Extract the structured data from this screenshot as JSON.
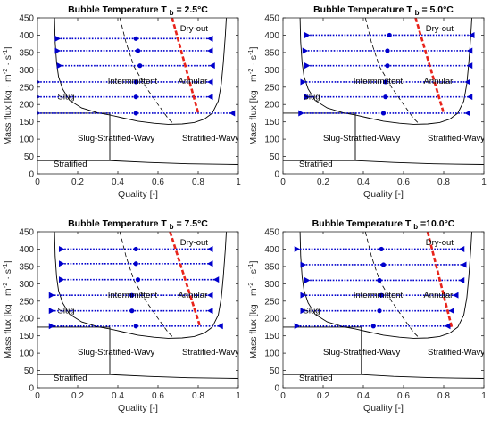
{
  "chart_data": [
    {
      "type": "scatter",
      "title": "Bubble Temperature T",
      "title_subscript": "b",
      "title_value": "= 2.5°C",
      "xlabel": "Quality [-]",
      "ylabel": "Mass flux [kg · m",
      "ylabel_exp1": "-2",
      "ylabel_mid": " · s",
      "ylabel_exp2": "-1",
      "ylabel_end": "]",
      "xlim": [
        0,
        1
      ],
      "ylim": [
        0,
        450
      ],
      "xticks": [
        0,
        0.2,
        0.4,
        0.6,
        0.8,
        1
      ],
      "xtick_labels": [
        "0",
        "0.2",
        "0.4",
        "0.6",
        "0.8",
        "1"
      ],
      "yticks": [
        0,
        50,
        100,
        150,
        200,
        250,
        300,
        350,
        400,
        450
      ],
      "ytick_labels": [
        "0",
        "50",
        "100",
        "150",
        "200",
        "250",
        "300",
        "350",
        "400",
        "450"
      ],
      "regions": [
        "Dry-out",
        "Intermmittent",
        "Annular",
        "Slug",
        "Slug-Stratified-Wavy",
        "Stratified-Wavy",
        "Stratified"
      ],
      "measurement_series": [
        {
          "G": 390,
          "x_in": 0.1,
          "x_mid": 0.49,
          "x_out": 0.86
        },
        {
          "G": 355,
          "x_in": 0.1,
          "x_mid": 0.5,
          "x_out": 0.86
        },
        {
          "G": 312,
          "x_in": 0.11,
          "x_mid": 0.51,
          "x_out": 0.87
        },
        {
          "G": 265,
          "x_in": 0.0,
          "x_mid": 0.49,
          "x_out": 0.86
        },
        {
          "G": 222,
          "x_in": 0.0,
          "x_mid": 0.49,
          "x_out": 0.86
        },
        {
          "G": 175,
          "x_in": 0.0,
          "x_mid": 0.49,
          "x_out": 0.97
        }
      ],
      "dryout_line": [
        [
          0.67,
          450
        ],
        [
          0.8,
          175
        ]
      ]
    },
    {
      "type": "scatter",
      "title": "Bubble Temperature T",
      "title_subscript": "b",
      "title_value": "= 5.0°C",
      "xlabel": "Quality [-]",
      "ylabel": "Mass flux [kg · m",
      "ylabel_exp1": "-2",
      "ylabel_mid": " · s",
      "ylabel_exp2": "-1",
      "ylabel_end": "]",
      "xlim": [
        0,
        1
      ],
      "ylim": [
        0,
        450
      ],
      "xticks": [
        0,
        0.2,
        0.4,
        0.6,
        0.8,
        1
      ],
      "xtick_labels": [
        "0",
        "0.2",
        "0.4",
        "0.6",
        "0.8",
        "1"
      ],
      "yticks": [
        0,
        50,
        100,
        150,
        200,
        250,
        300,
        350,
        400,
        450
      ],
      "ytick_labels": [
        "0",
        "50",
        "100",
        "150",
        "200",
        "250",
        "300",
        "350",
        "400",
        "450"
      ],
      "regions": [
        "Dry-out",
        "Intermmittent",
        "Annular",
        "Slug",
        "Slug-Stratified-Wavy",
        "Stratified-Wavy",
        "Stratified"
      ],
      "measurement_series": [
        {
          "G": 400,
          "x_in": 0.12,
          "x_mid": 0.53,
          "x_out": 0.94
        },
        {
          "G": 355,
          "x_in": 0.11,
          "x_mid": 0.52,
          "x_out": 0.93
        },
        {
          "G": 312,
          "x_in": 0.12,
          "x_mid": 0.52,
          "x_out": 0.93
        },
        {
          "G": 265,
          "x_in": 0.1,
          "x_mid": 0.51,
          "x_out": 0.92
        },
        {
          "G": 222,
          "x_in": 0.12,
          "x_mid": 0.51,
          "x_out": 0.93
        },
        {
          "G": 175,
          "x_in": 0.09,
          "x_mid": 0.5,
          "x_out": 0.92
        }
      ],
      "dryout_line": [
        [
          0.66,
          450
        ],
        [
          0.8,
          175
        ]
      ]
    },
    {
      "type": "scatter",
      "title": "Bubble Temperature T",
      "title_subscript": "b",
      "title_value": "= 7.5°C",
      "xlabel": "Quality [-]",
      "ylabel": "Mass flux [kg · m",
      "ylabel_exp1": "-2",
      "ylabel_mid": " · s",
      "ylabel_exp2": "-1",
      "ylabel_end": "]",
      "xlim": [
        0,
        1
      ],
      "ylim": [
        0,
        450
      ],
      "xticks": [
        0,
        0.2,
        0.4,
        0.6,
        0.8,
        1
      ],
      "xtick_labels": [
        "0",
        "0.2",
        "0.4",
        "0.6",
        "0.8",
        "1"
      ],
      "yticks": [
        0,
        50,
        100,
        150,
        200,
        250,
        300,
        350,
        400,
        450
      ],
      "ytick_labels": [
        "0",
        "50",
        "100",
        "150",
        "200",
        "250",
        "300",
        "350",
        "400",
        "450"
      ],
      "regions": [
        "Dry-out",
        "Intermmittent",
        "Annular",
        "Slug",
        "Slug-Stratified-Wavy",
        "Stratified-Wavy",
        "Stratified"
      ],
      "measurement_series": [
        {
          "G": 400,
          "x_in": 0.12,
          "x_mid": 0.49,
          "x_out": 0.86
        },
        {
          "G": 358,
          "x_in": 0.12,
          "x_mid": 0.49,
          "x_out": 0.86
        },
        {
          "G": 312,
          "x_in": 0.12,
          "x_mid": 0.5,
          "x_out": 0.89
        },
        {
          "G": 267,
          "x_in": 0.07,
          "x_mid": 0.47,
          "x_out": 0.86
        },
        {
          "G": 222,
          "x_in": 0.07,
          "x_mid": 0.47,
          "x_out": 0.86
        },
        {
          "G": 178,
          "x_in": 0.07,
          "x_mid": 0.49,
          "x_out": 0.91
        }
      ],
      "dryout_line": [
        [
          0.66,
          450
        ],
        [
          0.81,
          175
        ]
      ]
    },
    {
      "type": "scatter",
      "title": "Bubble Temperature T",
      "title_subscript": "b",
      "title_value": "=10.0°C",
      "xlabel": "Quality [-]",
      "ylabel": "Mass flux [kg · m",
      "ylabel_exp1": "-2",
      "ylabel_mid": " · s",
      "ylabel_exp2": "-1",
      "ylabel_end": "]",
      "xlim": [
        0,
        1
      ],
      "ylim": [
        0,
        450
      ],
      "xticks": [
        0,
        0.2,
        0.4,
        0.6,
        0.8,
        1
      ],
      "xtick_labels": [
        "0",
        "0.2",
        "0.4",
        "0.6",
        "0.8",
        "1"
      ],
      "yticks": [
        0,
        50,
        100,
        150,
        200,
        250,
        300,
        350,
        400,
        450
      ],
      "ytick_labels": [
        "0",
        "50",
        "100",
        "150",
        "200",
        "250",
        "300",
        "350",
        "400",
        "450"
      ],
      "regions": [
        "Dry-out",
        "Intermmittent",
        "Annular",
        "Slug",
        "Slug-Stratified-Wavy",
        "Stratified-Wavy",
        "Stratified"
      ],
      "measurement_series": [
        {
          "G": 400,
          "x_in": 0.07,
          "x_mid": 0.49,
          "x_out": 0.89
        },
        {
          "G": 355,
          "x_in": 0.1,
          "x_mid": 0.5,
          "x_out": 0.9
        },
        {
          "G": 310,
          "x_in": 0.12,
          "x_mid": 0.48,
          "x_out": 0.89
        },
        {
          "G": 267,
          "x_in": 0.1,
          "x_mid": 0.49,
          "x_out": 0.86
        },
        {
          "G": 222,
          "x_in": 0.1,
          "x_mid": 0.48,
          "x_out": 0.84
        },
        {
          "G": 178,
          "x_in": 0.07,
          "x_mid": 0.45,
          "x_out": 0.82
        }
      ],
      "dryout_line": [
        [
          0.72,
          450
        ],
        [
          0.84,
          175
        ]
      ]
    }
  ],
  "colors": {
    "measurement": "#0000cc",
    "dryout": "#e8231a",
    "boundary": "#000000",
    "axis_text": "#262626"
  }
}
